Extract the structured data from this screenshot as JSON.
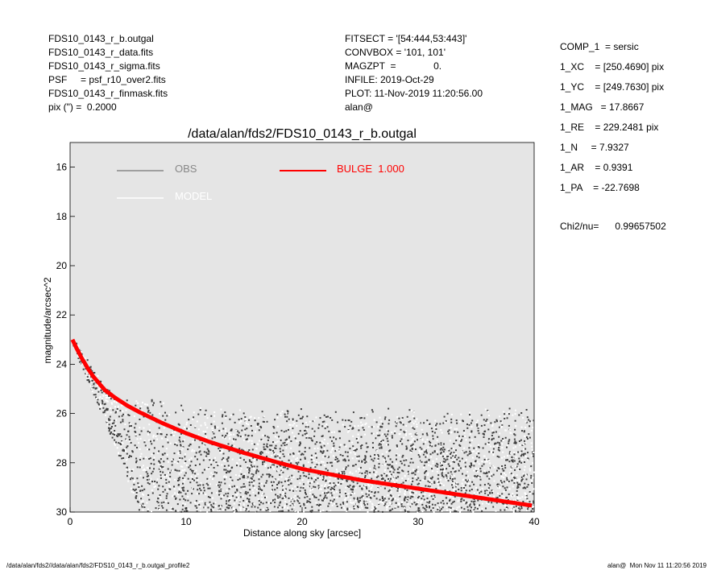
{
  "header_left": [
    "FDS10_0143_r_b.outgal",
    "FDS10_0143_r_data.fits",
    "FDS10_0143_r_sigma.fits",
    "PSF     = psf_r10_over2.fits",
    "FDS10_0143_r_finmask.fits",
    "pix (\") =  0.2000"
  ],
  "header_mid": [
    "FITSECT = '[54:444,53:443]'",
    "CONVBOX = '101, 101'",
    "MAGZPT  =              0.",
    "INFILE: 2019-Oct-29",
    "PLOT: 11-Nov-2019 11:20:56.00",
    "alan@"
  ],
  "params": [
    "COMP_1  = sersic",
    "1_XC    = [250.4690] pix",
    "1_YC    = [249.7630] pix",
    "1_MAG   = 17.8667",
    "1_RE    = 229.2481 pix",
    "1_N     = 7.9327",
    "1_AR    = 0.9391",
    "1_PA    = -22.7698"
  ],
  "chi2": "Chi2/nu=      0.99657502",
  "footer_left": "/data/alan/fds2//data/alan/fds2/FDS10_0143_r_b.outgal_profile2",
  "footer_right": "alan@  Mon Nov 11 11:20:56 2019",
  "colors": {
    "panel_bg": "#e5e5e5",
    "obs": "#888888",
    "model": "#ffffff",
    "bulge": "#ff0000",
    "obs_points_dark": "#404040",
    "obs_points_light": "#ffffff"
  },
  "chart_data": {
    "type": "scatter",
    "title": "/data/alan/fds2/FDS10_0143_r_b.outgal",
    "xlabel": "Distance along sky [arcsec]",
    "ylabel": "magnitude/arcsec^2",
    "xlim": [
      0,
      40
    ],
    "ylim": [
      30,
      15
    ],
    "y_inverted": true,
    "xticks": [
      0,
      10,
      20,
      30,
      40
    ],
    "yticks": [
      16,
      18,
      20,
      22,
      24,
      26,
      28,
      30
    ],
    "legend": [
      {
        "label": "OBS",
        "color": "#888888"
      },
      {
        "label": "MODEL",
        "color": "#ffffff"
      },
      {
        "label": "BULGE  1.000",
        "color": "#ff0000"
      }
    ],
    "legend_placement": "top",
    "series": [
      {
        "name": "BULGE  1.000",
        "kind": "line",
        "x": [
          0.2,
          0.5,
          1,
          1.5,
          2,
          3,
          4,
          5,
          6,
          8,
          10,
          12,
          15,
          18,
          20,
          25,
          30,
          35,
          40
        ],
        "y": [
          23.0,
          23.3,
          23.75,
          24.15,
          24.5,
          25.05,
          25.4,
          25.7,
          25.95,
          26.4,
          26.8,
          27.15,
          27.6,
          28.0,
          28.25,
          28.7,
          29.05,
          29.4,
          29.75
        ]
      },
      {
        "name": "OBS",
        "kind": "scatter-band",
        "x": [
          0.3,
          1,
          2,
          3,
          4,
          5,
          6,
          8,
          10,
          15,
          20,
          25,
          30,
          35,
          40
        ],
        "y_upper": [
          22.8,
          23.4,
          24.2,
          24.9,
          25.1,
          25.2,
          25.3,
          25.5,
          25.7,
          25.8,
          25.8,
          25.8,
          25.8,
          25.8,
          25.8
        ],
        "y_lower": [
          23.3,
          24.1,
          25.2,
          26.3,
          27.5,
          28.8,
          30.0,
          30.0,
          30.0,
          30.0,
          30.0,
          30.0,
          30.0,
          30.0,
          30.0
        ]
      }
    ]
  }
}
